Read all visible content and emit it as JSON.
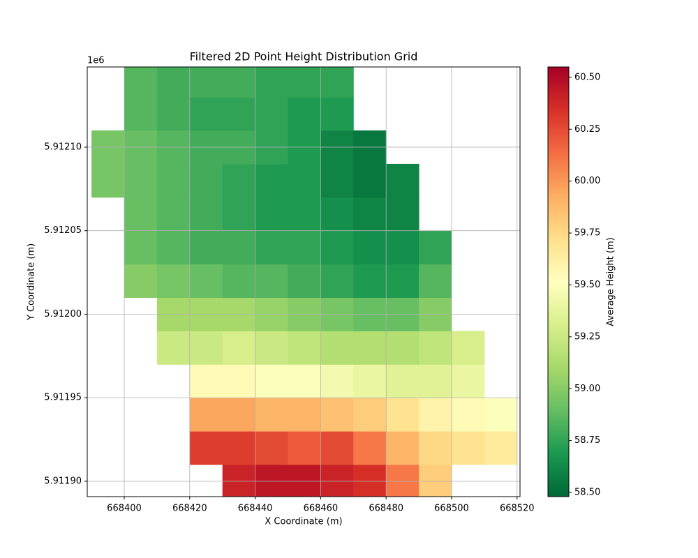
{
  "chart_data": {
    "type": "heatmap",
    "title": "Filtered 2D Point Height Distribution Grid",
    "x_label": "X Coordinate (m)",
    "y_label": "Y Coordinate (m)",
    "y_offset_label": "1e6",
    "colorbar_label": "Average Height (m)",
    "xlim": [
      668388.7,
      668520.9
    ],
    "ylim": [
      5911890.8,
      5912148.0
    ],
    "xticks": [
      668400,
      668420,
      668440,
      668460,
      668480,
      668500,
      668520
    ],
    "yticks": [
      {
        "value": 5911900,
        "label": "5.91190"
      },
      {
        "value": 5911950,
        "label": "5.91195"
      },
      {
        "value": 5912000,
        "label": "5.91200"
      },
      {
        "value": 5912050,
        "label": "5.91205"
      },
      {
        "value": 5912100,
        "label": "5.91210"
      }
    ],
    "clim": [
      58.48,
      60.55
    ],
    "cticks": [
      {
        "value": 58.5,
        "label": "58.50"
      },
      58.75,
      {
        "value": 59,
        "label": "59.00"
      },
      59.25,
      {
        "value": 59.5,
        "label": "59.50"
      },
      59.75,
      {
        "value": 60,
        "label": "60.00"
      },
      60.25,
      {
        "value": 60.5,
        "label": "60.50"
      }
    ],
    "colormap": [
      "#006837",
      "#1a9850",
      "#66bd63",
      "#a6d96a",
      "#d9ef8b",
      "#ffffbf",
      "#fee08b",
      "#fdae61",
      "#f46d43",
      "#d73027",
      "#a50026"
    ],
    "grid": true,
    "x_edges": [
      668390,
      668400,
      668410,
      668420,
      668430,
      668440,
      668450,
      668460,
      668470,
      668480,
      668490,
      668500,
      668510,
      668520
    ],
    "y_edges": [
      5911890,
      5911910,
      5911930,
      5911950,
      5911970,
      5911990,
      5912010,
      5912030,
      5912050,
      5912070,
      5912090,
      5912110,
      5912130,
      5912150
    ],
    "z": [
      [
        null,
        null,
        null,
        null,
        60.4,
        60.45,
        60.45,
        60.4,
        60.35,
        60.1,
        59.8,
        null,
        null
      ],
      [
        null,
        null,
        null,
        60.3,
        60.3,
        60.25,
        60.2,
        60.25,
        60.1,
        59.9,
        59.75,
        59.7,
        59.65
      ],
      [
        null,
        null,
        null,
        59.95,
        59.95,
        59.9,
        59.9,
        59.85,
        59.8,
        59.7,
        59.6,
        59.55,
        59.5
      ],
      [
        null,
        null,
        null,
        59.55,
        59.55,
        59.5,
        59.5,
        59.45,
        59.4,
        59.35,
        59.35,
        59.4,
        null
      ],
      [
        null,
        null,
        59.25,
        59.25,
        59.3,
        59.25,
        59.2,
        59.15,
        59.15,
        59.15,
        59.2,
        59.3,
        null
      ],
      [
        null,
        null,
        59.1,
        59.1,
        59.1,
        59.05,
        59.0,
        58.95,
        58.9,
        58.9,
        59.0,
        null,
        null
      ],
      [
        null,
        59.0,
        58.95,
        58.9,
        58.85,
        58.85,
        58.8,
        58.75,
        58.7,
        58.7,
        58.85,
        null,
        null
      ],
      [
        null,
        58.9,
        58.85,
        58.8,
        58.8,
        58.75,
        58.75,
        58.7,
        58.65,
        58.65,
        58.75,
        null,
        null
      ],
      [
        null,
        58.9,
        58.85,
        58.8,
        58.75,
        58.7,
        58.7,
        58.65,
        58.6,
        58.6,
        null,
        null,
        null
      ],
      [
        58.95,
        58.9,
        58.85,
        58.8,
        58.75,
        58.7,
        58.7,
        58.6,
        58.55,
        58.6,
        null,
        null,
        null
      ],
      [
        58.95,
        58.9,
        58.85,
        58.8,
        58.8,
        58.75,
        58.7,
        58.6,
        58.55,
        null,
        null,
        null,
        null
      ],
      [
        null,
        58.85,
        58.8,
        58.75,
        58.75,
        58.75,
        58.7,
        58.7,
        null,
        null,
        null,
        null,
        null
      ],
      [
        null,
        58.85,
        58.8,
        58.8,
        58.8,
        58.75,
        58.75,
        58.75,
        null,
        null,
        null,
        null,
        null
      ]
    ]
  }
}
